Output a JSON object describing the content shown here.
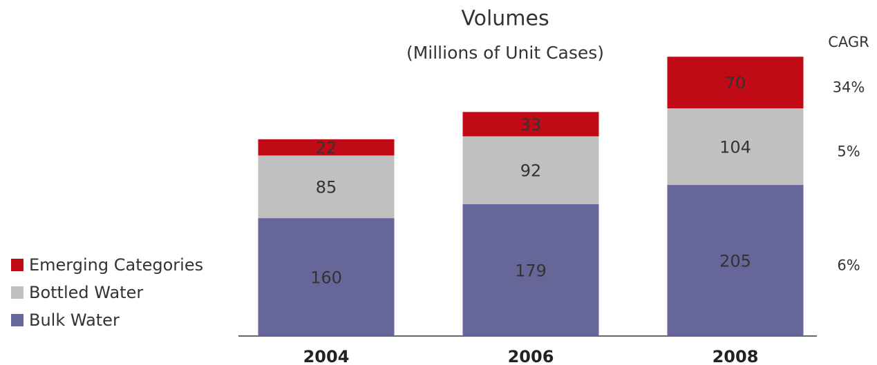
{
  "chart_data": {
    "type": "stacked_bar",
    "title": "Volumes",
    "subtitle": "(Millions of Unit Cases)",
    "categories": [
      "2004",
      "2006",
      "2008"
    ],
    "series": [
      {
        "name": "Bulk Water",
        "color": "#666699",
        "values": [
          160,
          179,
          205
        ],
        "cagr": "6%"
      },
      {
        "name": "Bottled Water",
        "color": "#c0c0c0",
        "values": [
          85,
          92,
          104
        ],
        "cagr": "5%"
      },
      {
        "name": "Emerging Categories",
        "color": "#c00a16",
        "values": [
          22,
          33,
          70
        ],
        "cagr": "34%"
      }
    ],
    "cagr_title": "CAGR"
  }
}
